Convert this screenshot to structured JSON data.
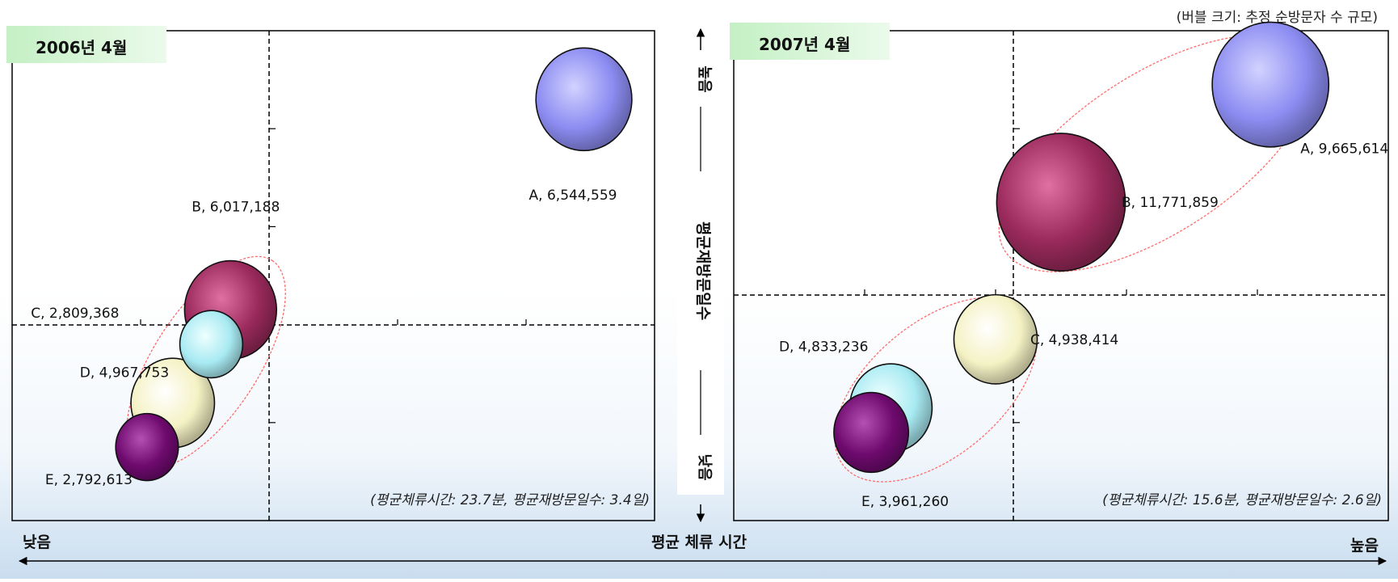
{
  "header": {
    "size_note": "(버블 크기: 추정 순방문자 수 규모)"
  },
  "axes": {
    "x_label": "평균 체류 시간",
    "x_low": "낮음",
    "x_high": "높음",
    "y_label": "평균재방문일수",
    "y_high": "높음",
    "y_low": "낮음"
  },
  "colors": {
    "A": "#8c8cf2",
    "B": "#9a2a5c",
    "C_2006": "#a8eaf2",
    "D_2006": "#f4f2c4",
    "E": "#6e0a6e",
    "C_2007": "#f4f2c4",
    "D_2007": "#a8eaf2",
    "title_bg": "#d2f5d2",
    "ellipse": "#ff6b6b"
  },
  "chart_data": [
    {
      "type": "scatter",
      "title": "2006년 4월",
      "average_note": "(평균체류시간: 23.7분, 평균재방문일수: 3.4일)",
      "xlim": [
        0,
        10
      ],
      "ylim": [
        0,
        10
      ],
      "points": [
        {
          "id": "A",
          "label": "A, 6,544,559",
          "x": 8.9,
          "y": 8.6,
          "size": 6544559,
          "color_key": "A"
        },
        {
          "id": "B",
          "label": "B, 6,017,188",
          "x": 3.4,
          "y": 4.3,
          "size": 6017188,
          "color_key": "B"
        },
        {
          "id": "D",
          "label": "D, 4,967,753",
          "x": 2.5,
          "y": 2.4,
          "size": 4967753,
          "color_key": "D_2006"
        },
        {
          "id": "C",
          "label": "C, 2,809,368",
          "x": 3.1,
          "y": 3.6,
          "size": 2809368,
          "color_key": "C_2006"
        },
        {
          "id": "E",
          "label": "E, 2,792,613",
          "x": 2.1,
          "y": 1.5,
          "size": 2792613,
          "color_key": "E"
        }
      ]
    },
    {
      "type": "scatter",
      "title": "2007년 4월",
      "average_note": "(평균체류시간: 15.6분, 평균재방문일수: 2.6일)",
      "xlim": [
        0,
        10
      ],
      "ylim": [
        0,
        10
      ],
      "points": [
        {
          "id": "A",
          "label": "A, 9,665,614",
          "x": 8.2,
          "y": 8.9,
          "size": 9665614,
          "color_key": "A"
        },
        {
          "id": "B",
          "label": "B, 11,771,859",
          "x": 5.0,
          "y": 6.5,
          "size": 11771859,
          "color_key": "B"
        },
        {
          "id": "C",
          "label": "C, 4,938,414",
          "x": 4.0,
          "y": 3.7,
          "size": 4938414,
          "color_key": "C_2007"
        },
        {
          "id": "D",
          "label": "D, 4,833,236",
          "x": 2.4,
          "y": 2.3,
          "size": 4833236,
          "color_key": "D_2007"
        },
        {
          "id": "E",
          "label": "E, 3,961,260",
          "x": 2.1,
          "y": 1.8,
          "size": 3961260,
          "color_key": "E"
        }
      ]
    }
  ]
}
